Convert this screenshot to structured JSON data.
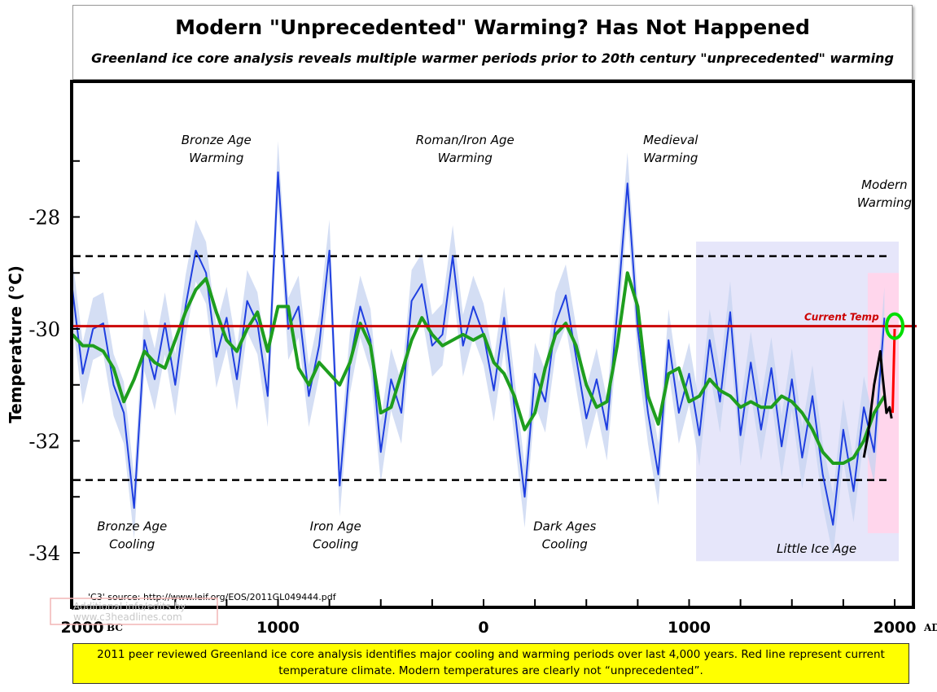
{
  "chart_data": {
    "type": "line",
    "title": "Modern \"Unprecedented\" Warming? Has Not Happened",
    "subtitle": "Greenland ice core analysis reveals multiple warmer periods prior to 20th century \"unprecedented\" warming",
    "ylabel": "Temperature (°C)",
    "xlim": [
      -2000,
      2000
    ],
    "ylim": [
      -35,
      -26
    ],
    "yticks": [
      {
        "v": -28,
        "label": "-28"
      },
      {
        "v": -30,
        "label": "-30"
      },
      {
        "v": -32,
        "label": "-32"
      },
      {
        "v": -34,
        "label": "-34"
      }
    ],
    "xticks": [
      {
        "v": -2000,
        "label": "2000",
        "suffix": "BC"
      },
      {
        "v": -1000,
        "label": "1000"
      },
      {
        "v": 0,
        "label": "0"
      },
      {
        "v": 1000,
        "label": "1000"
      },
      {
        "v": 2000,
        "label": "2000",
        "suffix": "AD"
      }
    ],
    "series": [
      {
        "color": "#1f3fe0",
        "x_start": -2000,
        "x_step": 50,
        "values": [
          -29.3,
          -30.8,
          -30.0,
          -29.9,
          -31.0,
          -31.5,
          -33.2,
          -30.2,
          -30.9,
          -29.9,
          -31.0,
          -29.6,
          -28.6,
          -29.0,
          -30.5,
          -29.8,
          -30.9,
          -29.5,
          -29.9,
          -31.2,
          -27.2,
          -30.0,
          -29.6,
          -31.2,
          -30.3,
          -28.6,
          -32.8,
          -30.6,
          -29.6,
          -30.2,
          -32.2,
          -30.9,
          -31.5,
          -29.5,
          -29.2,
          -30.3,
          -30.1,
          -28.7,
          -30.3,
          -29.6,
          -30.1,
          -31.1,
          -29.8,
          -31.4,
          -33.0,
          -30.8,
          -31.3,
          -29.9,
          -29.4,
          -30.5,
          -31.6,
          -30.9,
          -31.8,
          -29.7,
          -27.4,
          -30.0,
          -31.5,
          -32.6,
          -30.2,
          -31.5,
          -30.8,
          -31.9,
          -30.2,
          -31.3,
          -29.7,
          -31.9,
          -30.6,
          -31.8,
          -30.7,
          -32.1,
          -30.9,
          -32.3,
          -31.2,
          -32.6,
          -33.5,
          -31.8,
          -32.9,
          -31.4,
          -32.2,
          -29.8
        ]
      },
      {
        "color": "#1e9e1e",
        "x_start": -2000,
        "x_step": 50,
        "values": [
          -30.1,
          -30.3,
          -30.3,
          -30.4,
          -30.7,
          -31.3,
          -30.9,
          -30.4,
          -30.6,
          -30.7,
          -30.2,
          -29.7,
          -29.3,
          -29.1,
          -29.7,
          -30.2,
          -30.4,
          -30.0,
          -29.7,
          -30.4,
          -29.6,
          -29.6,
          -30.7,
          -31.0,
          -30.6,
          -30.8,
          -31.0,
          -30.6,
          -29.9,
          -30.3,
          -31.5,
          -31.4,
          -30.8,
          -30.2,
          -29.8,
          -30.1,
          -30.3,
          -30.2,
          -30.1,
          -30.2,
          -30.1,
          -30.6,
          -30.8,
          -31.2,
          -31.8,
          -31.5,
          -30.7,
          -30.1,
          -29.9,
          -30.3,
          -31.0,
          -31.4,
          -31.3,
          -30.3,
          -29.0,
          -29.6,
          -31.2,
          -31.7,
          -30.8,
          -30.7,
          -31.3,
          -31.2,
          -30.9,
          -31.1,
          -31.2,
          -31.4,
          -31.3,
          -31.4,
          -31.4,
          -31.2,
          -31.3,
          -31.5,
          -31.8,
          -32.2,
          -32.4,
          -32.4,
          -32.3,
          -32.0,
          -31.5,
          -31.2
        ]
      },
      {
        "color": "#000000",
        "x": [
          1850,
          1870,
          1900,
          1920,
          1930,
          1940,
          1960,
          1975,
          1985
        ],
        "values": [
          -32.3,
          -31.9,
          -31.0,
          -30.6,
          -30.4,
          -30.8,
          -31.5,
          -31.4,
          -31.6
        ]
      },
      {
        "color": "#ff0000",
        "x": [
          1990,
          2000
        ],
        "values": [
          -31.5,
          -30.0
        ]
      }
    ],
    "reference_lines": [
      {
        "y": -29.95,
        "label": "Current Temp",
        "color": "#cc0000"
      },
      {
        "y": -28.7,
        "style": "dashed"
      },
      {
        "y": -32.7,
        "style": "dashed"
      }
    ],
    "shaded_regions": [
      {
        "x": [
          1034,
          2020
        ],
        "y": [
          -34.15,
          -28.44
        ],
        "color": "#e6e6fa",
        "label": "Little Ice Age"
      },
      {
        "x": [
          1869,
          2020
        ],
        "y": [
          -33.65,
          -29.0
        ],
        "color": "#ffd6ec"
      }
    ],
    "highlight": {
      "x": 2000,
      "y": -29.95,
      "color": "#00dd00"
    },
    "annotations": [
      {
        "lines": [
          "Bronze Age",
          "Warming"
        ],
        "x": -1300,
        "y": -26.7
      },
      {
        "lines": [
          "Roman/Iron Age",
          "Warming"
        ],
        "x": -90,
        "y": -26.7
      },
      {
        "lines": [
          "Medieval",
          "Warming"
        ],
        "x": 910,
        "y": -26.7
      },
      {
        "lines": [
          "Modern",
          "Warming"
        ],
        "x": 1950,
        "y": -27.5
      },
      {
        "lines": [
          "Bronze Age",
          "Cooling"
        ],
        "x": -1710,
        "y": -33.6
      },
      {
        "lines": [
          "Iron Age",
          "Cooling"
        ],
        "x": -720,
        "y": -33.6
      },
      {
        "lines": [
          "Dark Ages",
          "Cooling"
        ],
        "x": 395,
        "y": -33.6
      },
      {
        "lines": [
          "Little Ice Age"
        ],
        "x": 1620,
        "y": -34.0
      }
    ],
    "source": "'C3' source: http://www.leif.org/EOS/2011GL049444.pdf",
    "watermark": [
      "Additional info/edits by",
      "www.c3headlines.com"
    ]
  },
  "caption": "2011 peer reviewed Greenland ice core analysis identifies major cooling and warming periods over last 4,000 years. Red line represent current temperature climate. Modern temperatures are clearly not “unprecedented”."
}
